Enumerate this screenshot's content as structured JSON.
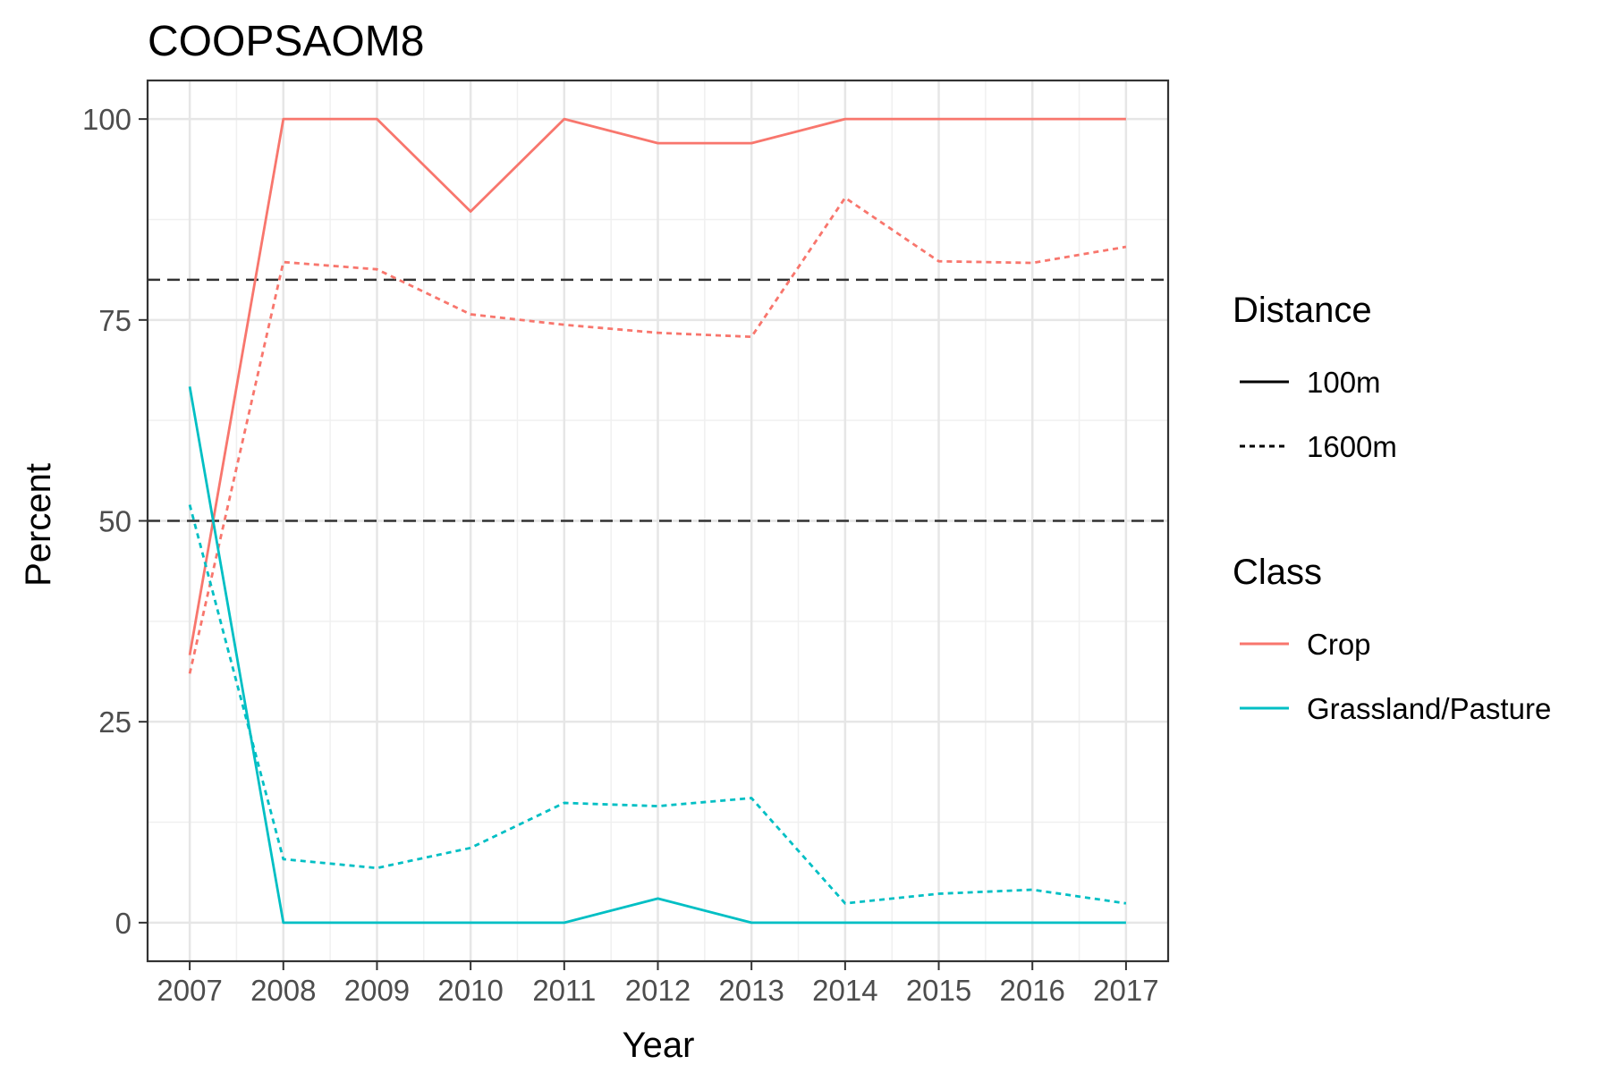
{
  "chart_data": {
    "type": "line",
    "title": "COOPSAOM8",
    "xlabel": "Year",
    "ylabel": "Percent",
    "x": [
      2007,
      2008,
      2009,
      2010,
      2011,
      2012,
      2013,
      2014,
      2015,
      2016,
      2017
    ],
    "x_tick_labels": [
      "2007",
      "2008",
      "2009",
      "2010",
      "2011",
      "2012",
      "2013",
      "2014",
      "2015",
      "2016",
      "2017"
    ],
    "y_ticks": [
      0,
      25,
      50,
      75,
      100
    ],
    "y_tick_labels": [
      "0",
      "25",
      "50",
      "75",
      "100"
    ],
    "xlim": [
      2006.55,
      2017.45
    ],
    "ylim": [
      -4.8,
      104.8
    ],
    "grid": true,
    "reference_lines": [
      {
        "y": 80,
        "style": "dashed",
        "color": "#333333"
      },
      {
        "y": 50,
        "style": "dashed",
        "color": "#333333"
      }
    ],
    "series": [
      {
        "name": "Crop 100m",
        "class": "Crop",
        "distance": "100m",
        "color": "#F8766D",
        "dash": "solid",
        "values": [
          33.3,
          100,
          100,
          88.5,
          100,
          97,
          97,
          100,
          100,
          100,
          100
        ]
      },
      {
        "name": "Crop 1600m",
        "class": "Crop",
        "distance": "1600m",
        "color": "#F8766D",
        "dash": "dotted",
        "values": [
          31,
          82.2,
          81.3,
          75.7,
          74.4,
          73.4,
          72.9,
          90.2,
          82.3,
          82.1,
          84.1
        ]
      },
      {
        "name": "Grassland/Pasture 100m",
        "class": "Grassland/Pasture",
        "distance": "100m",
        "color": "#00BFC4",
        "dash": "solid",
        "values": [
          66.7,
          0,
          0,
          0,
          0,
          3,
          0,
          0,
          0,
          0,
          0
        ]
      },
      {
        "name": "Grassland/Pasture 1600m",
        "class": "Grassland/Pasture",
        "distance": "1600m",
        "color": "#00BFC4",
        "dash": "dotted",
        "values": [
          52,
          7.9,
          6.8,
          9.3,
          14.9,
          14.5,
          15.5,
          2.4,
          3.6,
          4.1,
          2.4
        ]
      }
    ],
    "legends": [
      {
        "title": "Distance",
        "entries": [
          {
            "label": "100m",
            "color": "#000000",
            "dash": "solid"
          },
          {
            "label": "1600m",
            "color": "#000000",
            "dash": "dotted"
          }
        ]
      },
      {
        "title": "Class",
        "entries": [
          {
            "label": "Crop",
            "color": "#F8766D",
            "dash": "solid"
          },
          {
            "label": "Grassland/Pasture",
            "color": "#00BFC4",
            "dash": "solid"
          }
        ]
      }
    ],
    "legend_position": "right"
  }
}
